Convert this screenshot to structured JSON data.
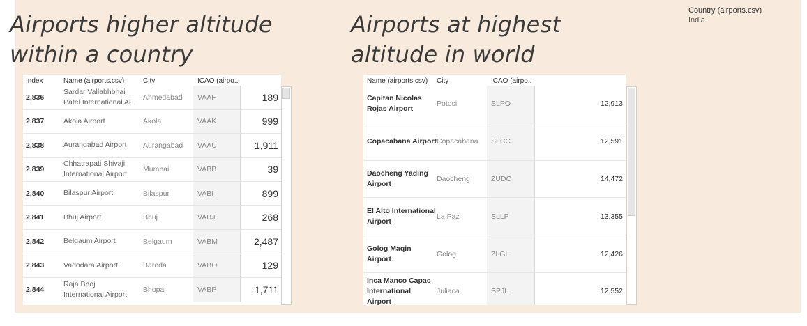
{
  "titles": {
    "left": [
      "Airports higher altitude",
      "within a country"
    ],
    "right": [
      "Airports  at highest",
      "altitude in world"
    ]
  },
  "filter": {
    "title": "Country (airports.csv)",
    "value": "India"
  },
  "table_country": {
    "headers": {
      "index": "Index",
      "name": "Name (airports.csv)",
      "city": "City",
      "icao": "ICAO (airpo.."
    },
    "rows": [
      {
        "index": "2,836",
        "name": [
          "Sardar Vallabhbhai",
          "Patel International Ai.."
        ],
        "city": "Ahmedabad",
        "icao": "VAAH",
        "alt": "189"
      },
      {
        "index": "2,837",
        "name": [
          "Akola Airport"
        ],
        "city": "Akola",
        "icao": "VAAK",
        "alt": "999"
      },
      {
        "index": "2,838",
        "name": [
          "Aurangabad Airport"
        ],
        "city": "Aurangabad",
        "icao": "VAAU",
        "alt": "1,911"
      },
      {
        "index": "2,839",
        "name": [
          "Chhatrapati Shivaji",
          "International Airport"
        ],
        "city": "Mumbai",
        "icao": "VABB",
        "alt": "39"
      },
      {
        "index": "2,840",
        "name": [
          "Bilaspur Airport"
        ],
        "city": "Bilaspur",
        "icao": "VABI",
        "alt": "899"
      },
      {
        "index": "2,841",
        "name": [
          "Bhuj Airport"
        ],
        "city": "Bhuj",
        "icao": "VABJ",
        "alt": "268"
      },
      {
        "index": "2,842",
        "name": [
          "Belgaum Airport"
        ],
        "city": "Belgaum",
        "icao": "VABM",
        "alt": "2,487"
      },
      {
        "index": "2,843",
        "name": [
          "Vadodara Airport"
        ],
        "city": "Baroda",
        "icao": "VABO",
        "alt": "129"
      },
      {
        "index": "2,844",
        "name": [
          "Raja Bhoj",
          "International Airport"
        ],
        "city": "Bhopal",
        "icao": "VABP",
        "alt": "1,711"
      }
    ]
  },
  "table_world": {
    "headers": {
      "name": "Name (airports.csv)",
      "city": "City",
      "icao": "ICAO (airpo.."
    },
    "rows": [
      {
        "name": [
          "Capitan Nicolas",
          "Rojas Airport"
        ],
        "city": "Potosi",
        "icao": "SLPO",
        "alt": "12,913"
      },
      {
        "name": [
          "Copacabana Airport"
        ],
        "city": "Copacabana",
        "icao": "SLCC",
        "alt": "12,591"
      },
      {
        "name": [
          "Daocheng Yading",
          "Airport"
        ],
        "city": "Daocheng",
        "icao": "ZUDC",
        "alt": "14,472"
      },
      {
        "name": [
          "El Alto International",
          "Airport"
        ],
        "city": "La Paz",
        "icao": "SLLP",
        "alt": "13,355"
      },
      {
        "name": [
          "Golog Maqin Airport"
        ],
        "city": "Golog",
        "icao": "ZLGL",
        "alt": "12,426"
      },
      {
        "name": [
          "Inca Manco Capac",
          "International",
          "Airport"
        ],
        "city": "Juliaca",
        "icao": "SPJL",
        "alt": "12,552"
      }
    ]
  }
}
